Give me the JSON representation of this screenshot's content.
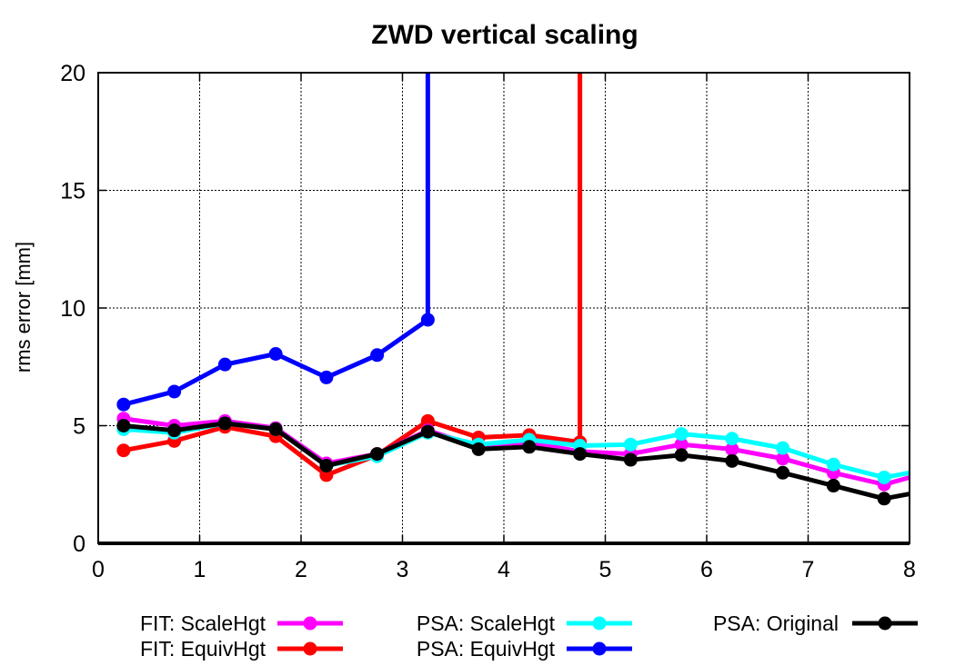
{
  "chart_data": {
    "type": "line",
    "title": "ZWD vertical scaling",
    "xlabel": "",
    "ylabel": "rms error [mm]",
    "xlim": [
      0,
      8
    ],
    "ylim": [
      0,
      20
    ],
    "xticks": [
      0,
      1,
      2,
      3,
      4,
      5,
      6,
      7,
      8
    ],
    "yticks": [
      0,
      5,
      10,
      15,
      20
    ],
    "grid": true,
    "legend_position": "bottom",
    "series": [
      {
        "name": "FIT: ScaleHgt",
        "color": "#ff00ff",
        "x": [
          0.25,
          0.75,
          1.25,
          1.75,
          2.25,
          2.75,
          3.25,
          3.75,
          4.25,
          4.75,
          5.25,
          5.75,
          6.25,
          6.75,
          7.25,
          7.75,
          8.0
        ],
        "y": [
          5.3,
          5.0,
          5.2,
          4.9,
          3.4,
          3.8,
          4.8,
          4.1,
          4.3,
          3.9,
          3.8,
          4.2,
          4.0,
          3.6,
          3.0,
          2.5,
          2.8
        ]
      },
      {
        "name": "FIT: EquivHgt",
        "color": "#ff0000",
        "x": [
          0.25,
          0.75,
          1.25,
          1.75,
          2.25,
          2.75,
          3.25,
          3.75,
          4.25,
          4.75,
          4.75
        ],
        "y": [
          3.95,
          4.35,
          4.95,
          4.55,
          2.9,
          3.75,
          5.2,
          4.5,
          4.6,
          4.3,
          20.0
        ]
      },
      {
        "name": "PSA: ScaleHgt",
        "color": "#00ffff",
        "x": [
          0.25,
          0.75,
          1.25,
          1.75,
          2.25,
          2.75,
          3.25,
          3.75,
          4.25,
          4.75,
          5.25,
          5.75,
          6.25,
          6.75,
          7.25,
          7.75,
          8.0
        ],
        "y": [
          4.85,
          4.7,
          5.1,
          4.85,
          3.3,
          3.7,
          4.7,
          4.2,
          4.4,
          4.15,
          4.2,
          4.65,
          4.45,
          4.05,
          3.35,
          2.8,
          3.0
        ]
      },
      {
        "name": "PSA: EquivHgt",
        "color": "#0000ff",
        "x": [
          0.25,
          0.75,
          1.25,
          1.75,
          2.25,
          2.75,
          3.25,
          3.25
        ],
        "y": [
          5.9,
          6.45,
          7.6,
          8.05,
          7.05,
          8.0,
          9.5,
          20.0
        ]
      },
      {
        "name": "PSA: Original",
        "color": "#000000",
        "x": [
          0.25,
          0.75,
          1.25,
          1.75,
          2.25,
          2.75,
          3.25,
          3.75,
          4.25,
          4.75,
          5.25,
          5.75,
          6.25,
          6.75,
          7.25,
          7.75,
          8.0
        ],
        "y": [
          5.0,
          4.8,
          5.1,
          4.85,
          3.3,
          3.8,
          4.75,
          4.0,
          4.1,
          3.8,
          3.55,
          3.75,
          3.5,
          3.0,
          2.45,
          1.9,
          2.1
        ]
      }
    ]
  }
}
